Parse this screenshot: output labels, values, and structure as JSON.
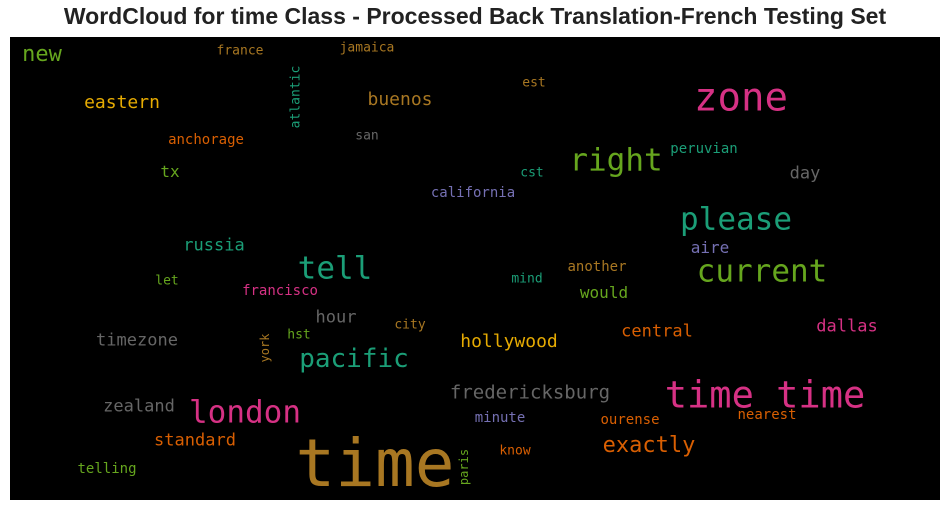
{
  "chart_data": {
    "type": "wordcloud",
    "title": "WordCloud for time Class - Processed Back Translation-French Testing Set",
    "background": "#000000",
    "words": [
      {
        "text": "time",
        "weight": 1.0,
        "color": "#a87722"
      },
      {
        "text": "zone",
        "weight": 0.62,
        "color": "#d63184"
      },
      {
        "text": "time time",
        "weight": 0.58,
        "color": "#d63184"
      },
      {
        "text": "london",
        "weight": 0.5,
        "color": "#d63184"
      },
      {
        "text": "tell",
        "weight": 0.5,
        "color": "#1b9e77"
      },
      {
        "text": "please",
        "weight": 0.5,
        "color": "#1b9e77"
      },
      {
        "text": "right",
        "weight": 0.5,
        "color": "#66a61e"
      },
      {
        "text": "current",
        "weight": 0.5,
        "color": "#66a61e"
      },
      {
        "text": "pacific",
        "weight": 0.42,
        "color": "#1b9e77"
      },
      {
        "text": "exactly",
        "weight": 0.35,
        "color": "#d95f02"
      },
      {
        "text": "new",
        "weight": 0.35,
        "color": "#66a61e"
      },
      {
        "text": "fredericksburg",
        "weight": 0.3,
        "color": "#666666"
      },
      {
        "text": "hollywood",
        "weight": 0.28,
        "color": "#e6ab02"
      },
      {
        "text": "eastern",
        "weight": 0.28,
        "color": "#e6ab02"
      },
      {
        "text": "buenos",
        "weight": 0.28,
        "color": "#a87722"
      },
      {
        "text": "russia",
        "weight": 0.26,
        "color": "#1b9e77"
      },
      {
        "text": "day",
        "weight": 0.26,
        "color": "#666666"
      },
      {
        "text": "timezone",
        "weight": 0.26,
        "color": "#666666"
      },
      {
        "text": "zealand",
        "weight": 0.26,
        "color": "#666666"
      },
      {
        "text": "standard",
        "weight": 0.26,
        "color": "#d95f02"
      },
      {
        "text": "central",
        "weight": 0.26,
        "color": "#d95f02"
      },
      {
        "text": "dallas",
        "weight": 0.26,
        "color": "#d63184"
      },
      {
        "text": "hour",
        "weight": 0.26,
        "color": "#666666"
      },
      {
        "text": "would",
        "weight": 0.24,
        "color": "#66a61e"
      },
      {
        "text": "tx",
        "weight": 0.24,
        "color": "#66a61e"
      },
      {
        "text": "aire",
        "weight": 0.24,
        "color": "#7570b3"
      },
      {
        "text": "anchorage",
        "weight": 0.2,
        "color": "#d95f02"
      },
      {
        "text": "california",
        "weight": 0.2,
        "color": "#7570b3"
      },
      {
        "text": "francisco",
        "weight": 0.2,
        "color": "#d63184"
      },
      {
        "text": "peruvian",
        "weight": 0.2,
        "color": "#1b9e77"
      },
      {
        "text": "another",
        "weight": 0.2,
        "color": "#a87722"
      },
      {
        "text": "telling",
        "weight": 0.2,
        "color": "#66a61e"
      },
      {
        "text": "ourense",
        "weight": 0.2,
        "color": "#d95f02"
      },
      {
        "text": "minute",
        "weight": 0.2,
        "color": "#7570b3"
      },
      {
        "text": "nearest",
        "weight": 0.2,
        "color": "#d95f02"
      },
      {
        "text": "france",
        "weight": 0.18,
        "color": "#a87722"
      },
      {
        "text": "jamaica",
        "weight": 0.18,
        "color": "#a87722"
      },
      {
        "text": "est",
        "weight": 0.18,
        "color": "#a87722"
      },
      {
        "text": "san",
        "weight": 0.18,
        "color": "#666666"
      },
      {
        "text": "cst",
        "weight": 0.18,
        "color": "#1b9e77"
      },
      {
        "text": "let",
        "weight": 0.18,
        "color": "#66a61e"
      },
      {
        "text": "mind",
        "weight": 0.18,
        "color": "#1b9e77"
      },
      {
        "text": "city",
        "weight": 0.18,
        "color": "#a87722"
      },
      {
        "text": "hst",
        "weight": 0.18,
        "color": "#66a61e"
      },
      {
        "text": "know",
        "weight": 0.18,
        "color": "#d95f02"
      },
      {
        "text": "atlantic",
        "weight": 0.18,
        "color": "#1b9e77"
      },
      {
        "text": "york",
        "weight": 0.16,
        "color": "#a87722"
      },
      {
        "text": "paris",
        "weight": 0.16,
        "color": "#66a61e"
      }
    ]
  }
}
